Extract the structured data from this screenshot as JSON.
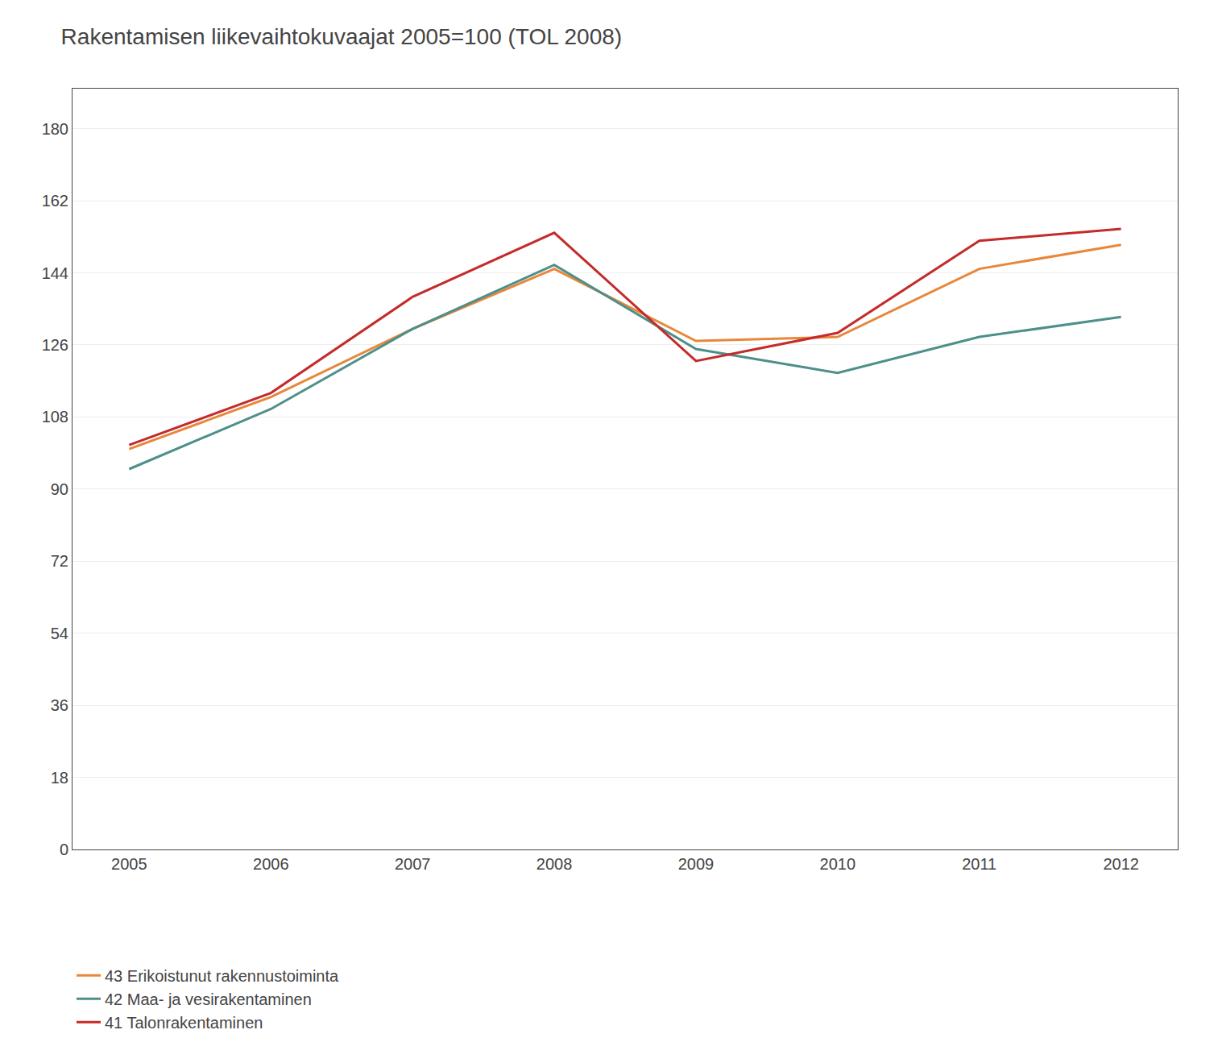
{
  "chart_data": {
    "type": "line",
    "title": "Rakentamisen liikevaihtokuvaajat 2005=100 (TOL 2008)",
    "x": [
      2005,
      2006,
      2007,
      2008,
      2009,
      2010,
      2011,
      2012
    ],
    "xlim": [
      2004.6,
      2012.4
    ],
    "xticks": [
      2005,
      2006,
      2007,
      2008,
      2009,
      2010,
      2011,
      2012
    ],
    "ylim": [
      0,
      190
    ],
    "yticks": [
      0,
      18,
      36,
      54,
      72,
      90,
      108,
      126,
      144,
      162,
      180
    ],
    "grid": true,
    "legend": "bottom",
    "series": [
      {
        "name": "43 Erikoistunut rakennustoiminta",
        "color": "#e8873a",
        "values": [
          100,
          113,
          130,
          145,
          127,
          128,
          145,
          151
        ]
      },
      {
        "name": "42 Maa- ja vesirakentaminen",
        "color": "#4d8f8a",
        "values": [
          95,
          110,
          130,
          146,
          125,
          119,
          128,
          133
        ]
      },
      {
        "name": "41 Talonrakentaminen",
        "color": "#c42b2b",
        "values": [
          101,
          114,
          138,
          154,
          122,
          129,
          152,
          155
        ]
      }
    ]
  }
}
